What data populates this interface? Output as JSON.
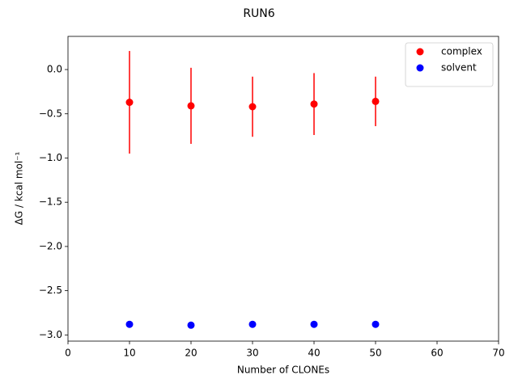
{
  "chart_data": {
    "type": "scatter",
    "title": "RUN6",
    "x_label": "Number of CLONEs",
    "y_label": "ΔG / kcal mol⁻¹",
    "series": [
      {
        "name": "complex",
        "color": "#ff0000",
        "x": [
          10,
          20,
          30,
          40,
          50
        ],
        "values": [
          -0.37,
          -0.41,
          -0.42,
          -0.39,
          -0.36
        ],
        "errors": [
          0.58,
          0.43,
          0.34,
          0.35,
          0.28
        ]
      },
      {
        "name": "solvent",
        "color": "#0000ff",
        "x": [
          10,
          20,
          30,
          40,
          50
        ],
        "values": [
          -2.88,
          -2.89,
          -2.88,
          -2.88,
          -2.88
        ]
      }
    ],
    "xlim": [
      0,
      70
    ],
    "xticks": [
      0,
      10,
      20,
      30,
      40,
      50,
      60,
      70
    ],
    "ylim": [
      -3.07,
      0.375
    ],
    "yticks": [
      {
        "value": 0,
        "label": "0.0"
      },
      {
        "value": -0.5,
        "label": "−0.5"
      },
      {
        "value": -1,
        "label": "−1.0"
      },
      {
        "value": -1.5,
        "label": "−1.5"
      },
      {
        "value": -2,
        "label": "−2.0"
      },
      {
        "value": -2.5,
        "label": "−2.5"
      },
      {
        "value": -3,
        "label": "−3.0"
      }
    ],
    "grid": false,
    "legend": "upper right"
  }
}
